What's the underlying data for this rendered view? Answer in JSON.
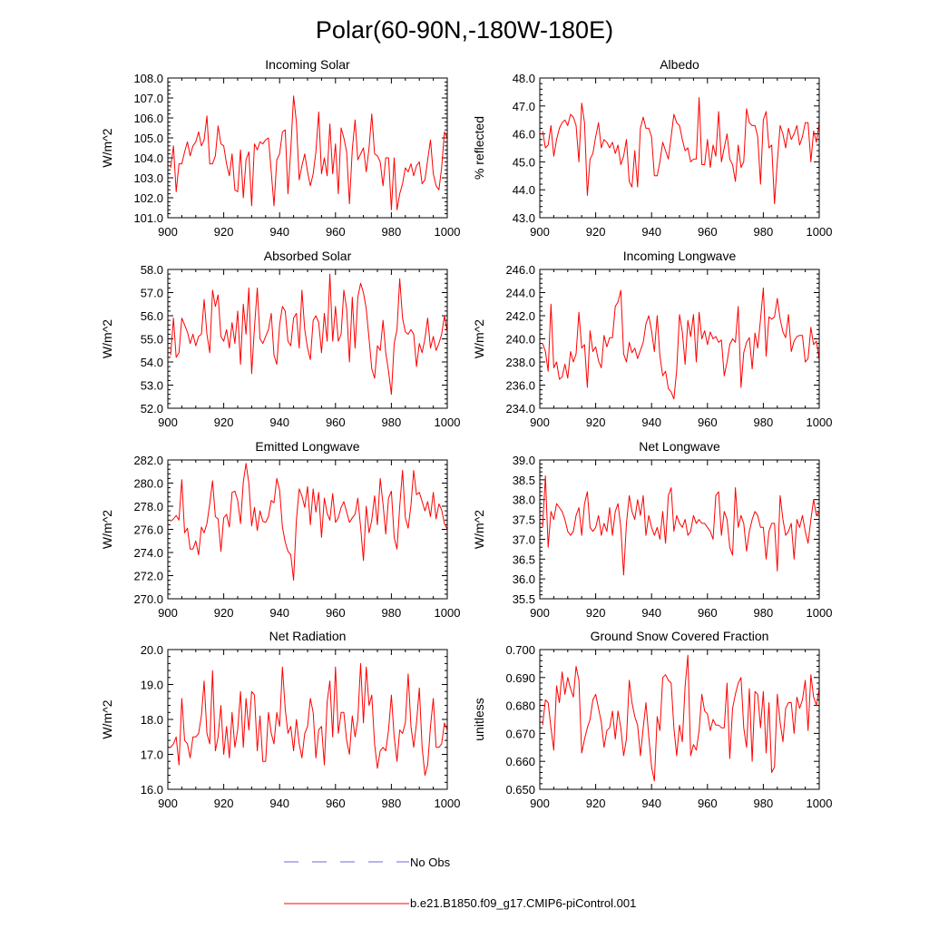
{
  "figure": {
    "title": "Polar(60-90N,-180W-180E)"
  },
  "legend": {
    "obs_label": "No Obs",
    "obs_color": "#6a6ad8",
    "model_label": "b.e21.B1850.f09_g17.CMIP6-piControl.001",
    "model_color": "#ff0000"
  },
  "chart_data": [
    {
      "type": "line",
      "title": "Incoming Solar",
      "xlabel": "",
      "ylabel": "W/m^2",
      "xlim": [
        900,
        1000
      ],
      "ylim": [
        101,
        108
      ],
      "x_ticks": [
        900,
        920,
        940,
        960,
        980,
        1000
      ],
      "y_ticks": [
        "101.0",
        "102.0",
        "103.0",
        "104.0",
        "105.0",
        "106.0",
        "107.0",
        "108.0"
      ],
      "x_start": 901,
      "values": [
        103.5,
        104.6,
        102.3,
        103.7,
        103.7,
        104.3,
        104.8,
        104.1,
        104.6,
        104.8,
        105.3,
        104.6,
        104.9,
        106.1,
        103.7,
        103.7,
        104.1,
        105.6,
        104.7,
        104.6,
        103.7,
        103.1,
        104.2,
        102.4,
        102.3,
        104.4,
        102.0,
        103.9,
        104.3,
        101.6,
        104.7,
        104.4,
        104.8,
        104.7,
        104.9,
        105.0,
        103.3,
        101.6,
        103.9,
        104.2,
        105.3,
        105.4,
        102.2,
        104.4,
        107.1,
        105.8,
        102.9,
        103.6,
        104.2,
        103.3,
        102.6,
        103.2,
        104.3,
        106.3,
        103.2,
        104.0,
        103.1,
        105.7,
        103.2,
        104.7,
        102.2,
        105.5,
        105.0,
        104.3,
        101.7,
        104.4,
        105.9,
        103.9,
        104.2,
        104.5,
        103.3,
        104.5,
        106.2,
        104.2,
        104.1,
        103.8,
        102.6,
        104.0,
        104.0,
        101.4,
        104.0,
        101.4,
        102.2,
        102.7,
        103.5,
        103.3,
        103.7,
        103.1,
        103.6,
        103.8,
        102.7,
        102.9,
        103.9,
        104.9,
        103.2,
        102.6,
        102.4,
        103.5,
        105.3,
        105.0
      ]
    },
    {
      "type": "line",
      "title": "Albedo",
      "xlabel": "",
      "ylabel": "% reflected",
      "xlim": [
        900,
        1000
      ],
      "ylim": [
        43,
        48
      ],
      "x_ticks": [
        900,
        920,
        940,
        960,
        980,
        1000
      ],
      "y_ticks": [
        "43.0",
        "44.0",
        "45.0",
        "46.0",
        "47.0",
        "48.0"
      ],
      "x_start": 901,
      "values": [
        46.1,
        45.5,
        45.6,
        46.3,
        45.2,
        45.8,
        46.2,
        46.4,
        46.5,
        46.3,
        46.7,
        46.6,
        46.3,
        45.0,
        47.1,
        46.4,
        43.8,
        45.1,
        45.3,
        45.9,
        46.4,
        45.5,
        45.8,
        45.7,
        45.5,
        45.7,
        45.3,
        45.6,
        44.9,
        45.2,
        45.8,
        44.3,
        44.1,
        45.4,
        44.1,
        46.2,
        46.6,
        46.2,
        46.2,
        45.9,
        44.5,
        44.5,
        45.0,
        45.7,
        45.4,
        45.1,
        45.9,
        46.7,
        46.4,
        46.3,
        45.8,
        45.4,
        45.5,
        45.0,
        45.1,
        45.1,
        47.3,
        44.9,
        44.9,
        45.8,
        44.8,
        45.6,
        45.2,
        46.8,
        45.0,
        45.5,
        46.0,
        45.1,
        44.9,
        44.3,
        45.6,
        44.8,
        45.0,
        46.9,
        46.4,
        46.3,
        46.3,
        45.9,
        44.2,
        46.5,
        46.8,
        45.5,
        45.6,
        43.5,
        45.0,
        46.3,
        46.0,
        45.5,
        46.2,
        45.8,
        46.0,
        46.3,
        45.6,
        45.9,
        46.4,
        46.4,
        45.0,
        46.1,
        45.7,
        46.4
      ]
    },
    {
      "type": "line",
      "title": "Absorbed Solar",
      "xlabel": "",
      "ylabel": "W/m^2",
      "xlim": [
        900,
        1000
      ],
      "ylim": [
        52,
        58
      ],
      "x_ticks": [
        900,
        920,
        940,
        960,
        980,
        1000
      ],
      "y_ticks": [
        "52.0",
        "53.0",
        "54.0",
        "55.0",
        "56.0",
        "57.0",
        "58.0"
      ],
      "x_start": 901,
      "values": [
        54.3,
        55.9,
        54.2,
        54.4,
        55.9,
        55.6,
        55.3,
        54.8,
        55.2,
        54.7,
        55.1,
        55.2,
        56.7,
        55.2,
        54.4,
        57.1,
        56.4,
        56.9,
        55.1,
        54.9,
        55.4,
        54.6,
        55.7,
        54.8,
        56.2,
        53.9,
        56.5,
        55.2,
        57.2,
        53.5,
        55.5,
        57.2,
        55.0,
        54.8,
        55.1,
        55.4,
        56.1,
        54.3,
        53.9,
        55.6,
        56.4,
        56.2,
        54.9,
        54.7,
        55.9,
        56.1,
        54.6,
        57.1,
        55.4,
        54.6,
        54.1,
        55.8,
        56.0,
        55.7,
        54.4,
        56.1,
        54.9,
        57.8,
        54.9,
        56.4,
        54.9,
        55.2,
        57.1,
        56.3,
        54.0,
        56.8,
        54.6,
        56.8,
        57.4,
        57.0,
        56.3,
        55.0,
        53.7,
        53.3,
        54.7,
        54.5,
        55.8,
        54.4,
        53.6,
        52.6,
        54.8,
        55.4,
        57.6,
        55.9,
        55.3,
        55.2,
        55.4,
        55.2,
        53.8,
        54.8,
        54.4,
        55.0,
        55.9,
        54.6,
        55.1,
        54.5,
        54.8,
        55.2,
        56.0,
        55.3
      ]
    },
    {
      "type": "line",
      "title": "Incoming Longwave",
      "xlabel": "",
      "ylabel": "W/m^2",
      "xlim": [
        900,
        1000
      ],
      "ylim": [
        234,
        246
      ],
      "x_ticks": [
        900,
        920,
        940,
        960,
        980,
        1000
      ],
      "y_ticks": [
        "234.0",
        "236.0",
        "238.0",
        "240.0",
        "242.0",
        "244.0",
        "246.0"
      ],
      "x_start": 901,
      "values": [
        239.6,
        238.9,
        237.2,
        243.0,
        237.5,
        238.0,
        236.5,
        236.7,
        237.8,
        236.6,
        238.9,
        238.0,
        238.7,
        242.3,
        239.2,
        239.5,
        235.8,
        240.7,
        238.9,
        239.3,
        238.1,
        237.5,
        240.3,
        239.3,
        240.1,
        240.1,
        242.8,
        243.2,
        244.2,
        238.7,
        238.0,
        239.7,
        238.8,
        239.2,
        238.3,
        239.0,
        239.7,
        241.3,
        242.0,
        240.7,
        238.9,
        242.0,
        238.5,
        236.8,
        237.2,
        235.7,
        235.4,
        234.8,
        237.3,
        242.1,
        240.6,
        237.8,
        241.6,
        240.2,
        242.1,
        238.0,
        242.3,
        240.0,
        240.7,
        239.5,
        240.6,
        240.0,
        240.2,
        239.7,
        239.9,
        236.8,
        238.0,
        239.5,
        240.0,
        239.7,
        242.8,
        235.8,
        238.8,
        239.7,
        240.1,
        237.4,
        240.5,
        239.2,
        241.7,
        244.4,
        238.5,
        241.9,
        241.7,
        241.9,
        243.5,
        241.7,
        240.6,
        240.1,
        242.1,
        238.9,
        239.8,
        240.2,
        240.3,
        240.3,
        238.0,
        238.3,
        241.0,
        239.5,
        239.8,
        238.2
      ]
    },
    {
      "type": "line",
      "title": "Emitted Longwave",
      "xlabel": "",
      "ylabel": "W/m^2",
      "xlim": [
        900,
        1000
      ],
      "ylim": [
        270,
        282
      ],
      "x_ticks": [
        900,
        920,
        940,
        960,
        980,
        1000
      ],
      "y_ticks": [
        "270.0",
        "272.0",
        "274.0",
        "276.0",
        "278.0",
        "280.0",
        "282.0"
      ],
      "x_start": 901,
      "values": [
        276.7,
        276.9,
        277.2,
        276.8,
        280.3,
        275.7,
        276.1,
        274.3,
        274.3,
        275.0,
        273.8,
        276.2,
        275.7,
        276.5,
        278.2,
        280.2,
        277.1,
        276.9,
        274.1,
        277.0,
        277.3,
        276.2,
        279.2,
        279.3,
        278.5,
        276.5,
        280.1,
        281.7,
        280.0,
        276.3,
        277.9,
        275.9,
        277.6,
        276.7,
        276.6,
        277.1,
        278.5,
        278.3,
        280.4,
        279.4,
        276.2,
        274.9,
        274.1,
        273.8,
        271.6,
        276.8,
        279.5,
        278.9,
        277.9,
        279.7,
        276.4,
        279.5,
        277.5,
        279.2,
        275.3,
        278.7,
        277.4,
        276.8,
        279.1,
        276.6,
        277.0,
        277.9,
        278.4,
        277.5,
        276.6,
        277.0,
        277.3,
        278.7,
        276.2,
        273.3,
        278.0,
        275.7,
        276.8,
        278.9,
        276.4,
        280.4,
        278.2,
        275.6,
        278.7,
        279.3,
        275.3,
        274.3,
        278.0,
        281.1,
        277.0,
        276.1,
        278.1,
        281.1,
        279.0,
        279.2,
        278.4,
        277.6,
        278.4,
        277.1,
        279.2,
        276.9,
        278.2,
        277.7,
        276.5,
        276.0
      ]
    },
    {
      "type": "line",
      "title": "Net Longwave",
      "xlabel": "",
      "ylabel": "W/m^2",
      "xlim": [
        900,
        1000
      ],
      "ylim": [
        35.5,
        39
      ],
      "x_ticks": [
        900,
        920,
        940,
        960,
        980,
        1000
      ],
      "y_ticks": [
        "35.5",
        "36.0",
        "36.5",
        "37.0",
        "37.5",
        "38.0",
        "38.5",
        "39.0"
      ],
      "x_start": 901,
      "values": [
        37.3,
        38.6,
        36.8,
        37.7,
        37.5,
        37.9,
        37.8,
        37.7,
        37.5,
        37.2,
        37.1,
        37.2,
        37.6,
        37.8,
        37.1,
        37.9,
        38.2,
        37.3,
        37.2,
        37.3,
        37.6,
        37.1,
        37.4,
        37.2,
        37.8,
        37.1,
        37.7,
        37.9,
        37.3,
        36.1,
        37.4,
        38.1,
        37.7,
        37.5,
        38.0,
        37.6,
        38.1,
        37.1,
        37.6,
        37.3,
        37.1,
        37.3,
        37.0,
        37.7,
        36.9,
        38.1,
        38.3,
        37.2,
        37.6,
        37.4,
        37.3,
        37.5,
        37.1,
        37.2,
        37.6,
        37.4,
        37.5,
        37.4,
        37.4,
        37.3,
        37.2,
        37.0,
        38.1,
        38.2,
        37.1,
        37.7,
        37.5,
        36.8,
        36.6,
        38.3,
        37.3,
        37.6,
        37.4,
        36.7,
        37.2,
        37.5,
        37.7,
        37.6,
        37.3,
        37.3,
        36.5,
        37.2,
        37.4,
        37.4,
        36.2,
        38.1,
        37.5,
        37.1,
        37.2,
        37.4,
        36.5,
        37.5,
        37.3,
        37.6,
        37.2,
        36.9,
        37.5,
        38.0,
        37.6,
        37.7
      ]
    },
    {
      "type": "line",
      "title": "Net Radiation",
      "xlabel": "",
      "ylabel": "W/m^2",
      "xlim": [
        900,
        1000
      ],
      "ylim": [
        16,
        20
      ],
      "x_ticks": [
        900,
        920,
        940,
        960,
        980,
        1000
      ],
      "y_ticks": [
        "16.0",
        "17.0",
        "18.0",
        "19.0",
        "20.0"
      ],
      "x_start": 901,
      "values": [
        17.2,
        17.3,
        17.5,
        16.7,
        18.6,
        17.4,
        17.3,
        16.9,
        17.5,
        17.5,
        17.6,
        18.1,
        19.1,
        17.6,
        17.3,
        19.4,
        17.1,
        17.5,
        18.4,
        17.0,
        17.8,
        16.9,
        18.2,
        17.2,
        17.7,
        18.8,
        17.2,
        18.6,
        17.7,
        18.8,
        18.7,
        17.1,
        18.1,
        16.8,
        16.8,
        18.2,
        17.6,
        17.3,
        18.2,
        17.8,
        19.5,
        18.3,
        17.6,
        17.8,
        17.1,
        18.0,
        17.3,
        16.9,
        17.6,
        17.8,
        18.6,
        18.2,
        16.9,
        17.7,
        17.8,
        16.7,
        18.5,
        19.1,
        17.5,
        19.5,
        17.6,
        18.2,
        18.2,
        17.4,
        17.0,
        18.1,
        17.5,
        18.0,
        19.6,
        17.9,
        19.5,
        18.4,
        18.7,
        17.3,
        16.6,
        17.1,
        17.2,
        17.1,
        17.7,
        18.7,
        17.5,
        16.8,
        17.7,
        17.6,
        17.9,
        19.3,
        17.8,
        17.2,
        17.9,
        18.9,
        17.2,
        16.4,
        16.7,
        17.8,
        18.6,
        17.2,
        17.2,
        17.3,
        17.9,
        17.7
      ]
    },
    {
      "type": "line",
      "title": "Ground Snow Covered Fraction",
      "xlabel": "",
      "ylabel": "unitless",
      "xlim": [
        900,
        1000
      ],
      "ylim": [
        0.65,
        0.7
      ],
      "x_ticks": [
        900,
        920,
        940,
        960,
        980,
        1000
      ],
      "y_ticks": [
        "0.650",
        "0.660",
        "0.670",
        "0.680",
        "0.690",
        "0.700"
      ],
      "x_start": 901,
      "values": [
        0.673,
        0.682,
        0.681,
        0.672,
        0.664,
        0.687,
        0.681,
        0.692,
        0.684,
        0.69,
        0.686,
        0.683,
        0.694,
        0.689,
        0.663,
        0.668,
        0.672,
        0.675,
        0.682,
        0.684,
        0.679,
        0.674,
        0.665,
        0.671,
        0.672,
        0.678,
        0.668,
        0.678,
        0.672,
        0.662,
        0.668,
        0.689,
        0.681,
        0.676,
        0.673,
        0.662,
        0.672,
        0.681,
        0.669,
        0.658,
        0.653,
        0.676,
        0.671,
        0.69,
        0.691,
        0.689,
        0.688,
        0.672,
        0.662,
        0.673,
        0.667,
        0.687,
        0.698,
        0.662,
        0.666,
        0.664,
        0.671,
        0.684,
        0.678,
        0.677,
        0.671,
        0.675,
        0.673,
        0.673,
        0.672,
        0.672,
        0.688,
        0.661,
        0.679,
        0.684,
        0.688,
        0.69,
        0.672,
        0.665,
        0.686,
        0.66,
        0.685,
        0.684,
        0.672,
        0.685,
        0.663,
        0.681,
        0.656,
        0.658,
        0.684,
        0.674,
        0.667,
        0.679,
        0.681,
        0.681,
        0.67,
        0.683,
        0.679,
        0.682,
        0.689,
        0.671,
        0.691,
        0.683,
        0.68,
        0.686
      ]
    }
  ]
}
